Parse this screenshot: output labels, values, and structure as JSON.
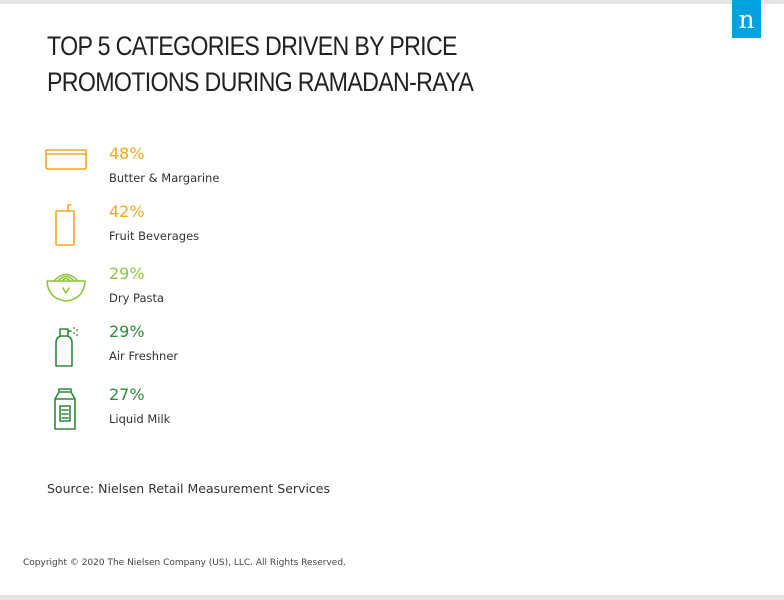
{
  "brand": {
    "logo_text": "n",
    "logo_color": "#00a3e0"
  },
  "title": "TOP 5 CATEGORIES DRIVEN BY PRICE PROMOTIONS DURING RAMADAN-RAYA",
  "chart_data": {
    "type": "table",
    "categories": [
      "Butter & Margarine",
      "Fruit Beverages",
      "Dry Pasta",
      "Air Freshner",
      "Liquid Milk"
    ],
    "values": [
      48,
      42,
      29,
      29,
      27
    ],
    "value_labels": [
      "48%",
      "42%",
      "29%",
      "29%",
      "27%"
    ],
    "colors": [
      "#f5a623",
      "#f5a623",
      "#8cc63f",
      "#2e8b3a",
      "#2e8b3a"
    ],
    "icons": [
      "butter-tub-icon",
      "juice-carton-icon",
      "pasta-bowl-icon",
      "spray-bottle-icon",
      "milk-carton-icon"
    ]
  },
  "source": "Source: Nielsen Retail Measurement Services",
  "copyright": "Copyright © 2020 The Nielsen Company (US), LLC. All Rights Reserved."
}
